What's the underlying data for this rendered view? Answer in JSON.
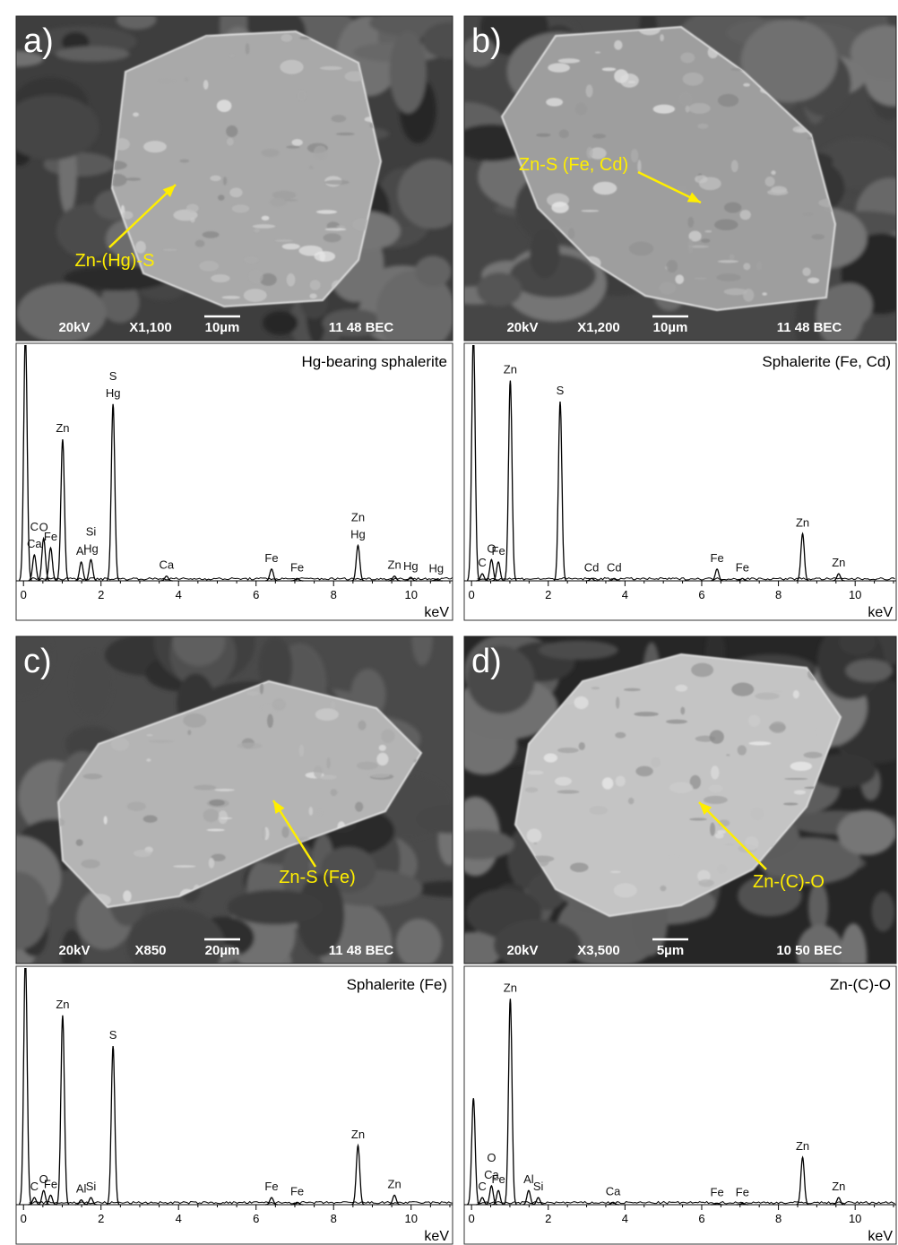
{
  "images": [
    {
      "label": "a)",
      "annotation": "Zn-(Hg)-S",
      "info": {
        "voltage": "20kV",
        "magnification": "X1,100",
        "scale": "10µm",
        "code": "11 48 BEC"
      }
    },
    {
      "label": "b)",
      "annotation": "Zn-S (Fe, Cd)",
      "info": {
        "voltage": "20kV",
        "magnification": "X1,200",
        "scale": "10µm",
        "code": "11 48 BEC"
      }
    },
    {
      "label": "c)",
      "annotation": "Zn-S (Fe)",
      "info": {
        "voltage": "20kV",
        "magnification": "X850",
        "scale": "20µm",
        "code": "11 48 BEC"
      }
    },
    {
      "label": "d)",
      "annotation": "Zn-(C)-O",
      "info": {
        "voltage": "20kV",
        "magnification": "X3,500",
        "scale": "5µm",
        "code": "10 50 BEC"
      }
    }
  ],
  "chart_data": [
    {
      "type": "spectrum",
      "title": "Hg-bearing sphalerite",
      "x_label": "keV",
      "xlim": [
        -0.19,
        11.07
      ],
      "xticks": [
        0,
        2,
        4,
        6,
        8,
        10
      ],
      "ylim": [
        0,
        100
      ],
      "x": [
        0.05,
        0.28,
        0.52,
        0.7,
        1.01,
        1.49,
        1.74,
        2.31,
        3.69,
        6.4,
        7.06,
        8.63,
        9.57,
        9.99,
        10.65
      ],
      "values": [
        105,
        11,
        18,
        14,
        60,
        8,
        9,
        75,
        2,
        5,
        1,
        15,
        2,
        1.5,
        0.5
      ],
      "labels": [
        [],
        [
          "C",
          "Ca"
        ],
        [
          "O"
        ],
        [
          "Fe"
        ],
        [
          "Zn"
        ],
        [
          "Al"
        ],
        [
          "Si",
          "Hg"
        ],
        [
          "S",
          "Hg"
        ],
        [
          "Ca"
        ],
        [
          "Fe"
        ],
        [
          "Fe"
        ],
        [
          "Zn",
          "Hg"
        ],
        [
          "Zn"
        ],
        [
          "Hg"
        ],
        [
          "Hg"
        ]
      ]
    },
    {
      "type": "spectrum",
      "title": "Sphalerite (Fe, Cd)",
      "x_label": "keV",
      "xlim": [
        -0.19,
        11.07
      ],
      "xticks": [
        0,
        2,
        4,
        6,
        8,
        10
      ],
      "ylim": [
        0,
        100
      ],
      "x": [
        0.05,
        0.28,
        0.52,
        0.7,
        1.01,
        2.31,
        3.13,
        3.72,
        6.4,
        7.06,
        8.63,
        9.57
      ],
      "values": [
        105,
        3,
        9,
        8,
        85,
        76,
        1,
        1,
        5,
        1,
        20,
        3
      ],
      "labels": [
        [],
        [
          "C"
        ],
        [
          "O"
        ],
        [
          "Fe"
        ],
        [
          "Zn"
        ],
        [
          "S"
        ],
        [
          "Cd"
        ],
        [
          "Cd"
        ],
        [
          "Fe"
        ],
        [
          "Fe"
        ],
        [
          "Zn"
        ],
        [
          "Zn"
        ]
      ]
    },
    {
      "type": "spectrum",
      "title": "Sphalerite (Fe)",
      "x_label": "keV",
      "xlim": [
        -0.19,
        11.07
      ],
      "xticks": [
        0,
        2,
        4,
        6,
        8,
        10
      ],
      "ylim": [
        0,
        100
      ],
      "x": [
        0.05,
        0.28,
        0.52,
        0.7,
        1.01,
        1.49,
        1.74,
        2.31,
        6.4,
        7.06,
        8.63,
        9.57
      ],
      "values": [
        105,
        3,
        6,
        4,
        80,
        2,
        3,
        67,
        3,
        1,
        25,
        4
      ],
      "labels": [
        [],
        [
          "C"
        ],
        [
          "O"
        ],
        [
          "Fe"
        ],
        [
          "Zn"
        ],
        [
          "Al"
        ],
        [
          "Si"
        ],
        [
          "S"
        ],
        [
          "Fe"
        ],
        [
          "Fe"
        ],
        [
          "Zn"
        ],
        [
          "Zn"
        ]
      ]
    },
    {
      "type": "spectrum",
      "title": "Zn-(C)-O",
      "x_label": "keV",
      "xlim": [
        -0.19,
        11.07
      ],
      "xticks": [
        0,
        2,
        4,
        6,
        8,
        10
      ],
      "ylim": [
        0,
        100
      ],
      "x": [
        0.05,
        0.28,
        0.52,
        0.7,
        1.01,
        1.49,
        1.74,
        3.69,
        6.4,
        7.06,
        8.63,
        9.57
      ],
      "values": [
        45,
        3,
        8,
        6,
        87,
        6,
        3,
        1,
        0.5,
        0.5,
        20,
        3
      ],
      "labels": [
        [],
        [
          "C"
        ],
        [
          "O",
          "Ca"
        ],
        [
          "Fe"
        ],
        [
          "Zn"
        ],
        [
          "Al"
        ],
        [
          "Si"
        ],
        [
          "Ca"
        ],
        [
          "Fe"
        ],
        [
          "Fe"
        ],
        [
          "Zn"
        ],
        [
          "Zn"
        ]
      ]
    }
  ]
}
